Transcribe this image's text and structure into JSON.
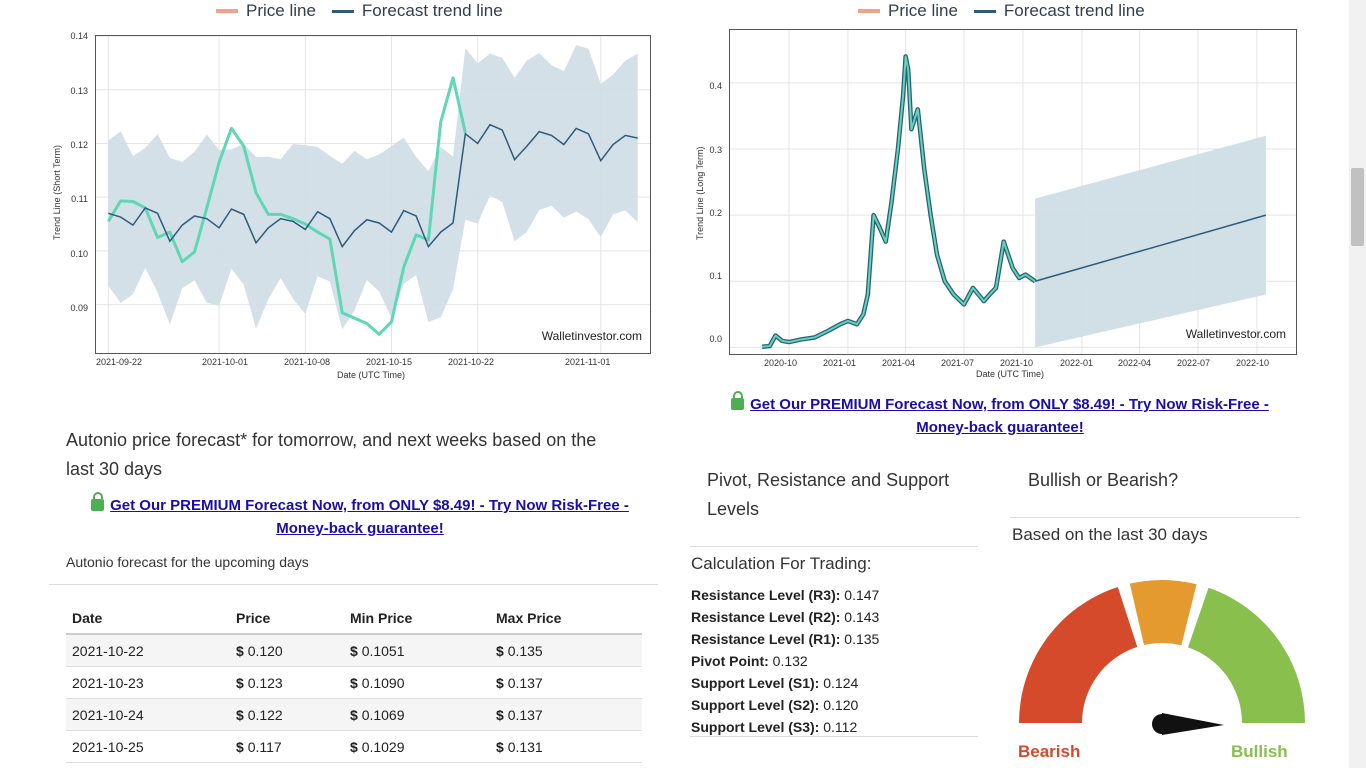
{
  "charts": {
    "short": {
      "legend": {
        "price": "Price line",
        "trend": "Forecast trend line"
      },
      "colors": {
        "price": "#5fd6b4",
        "trend": "#2d5b7c",
        "band": "#cfdde6"
      },
      "ylabel": "Trend Line (Short Term)",
      "xlabel": "Date (UTC Time)",
      "watermark": "Walletinvestor.com",
      "yticks": [
        "0.14",
        "0.13",
        "0.12",
        "0.11",
        "0.10",
        "0.09"
      ],
      "xticks": [
        "2021-09-22",
        "2021-10-01",
        "2021-10-08",
        "2021-10-15",
        "2021-10-22",
        "2021-11-01"
      ]
    },
    "long": {
      "legend": {
        "price": "Price line",
        "trend": "Forecast trend line"
      },
      "ylabel": "Trend Line (Long Term)",
      "xlabel": "Date (UTC Time)",
      "watermark": "Walletinvestor.com",
      "yticks": [
        "0.4",
        "0.3",
        "0.2",
        "0.1",
        "0.0"
      ],
      "xticks": [
        "2020-10",
        "2021-01",
        "2021-04",
        "2021-07",
        "2021-10",
        "2022-01",
        "2022-04",
        "2022-07",
        "2022-10"
      ]
    }
  },
  "chart_data": [
    {
      "type": "line",
      "ylabel": "Trend Line (Short Term)",
      "xlabel": "Date (UTC Time)",
      "ylim": [
        0.081,
        0.14
      ],
      "x_range": [
        "2021-09-21",
        "2021-11-05"
      ],
      "series": [
        {
          "name": "Price line",
          "x": [
            "2021-09-22",
            "2021-09-23",
            "2021-09-24",
            "2021-09-25",
            "2021-09-26",
            "2021-09-27",
            "2021-09-28",
            "2021-09-29",
            "2021-09-30",
            "2021-10-01",
            "2021-10-02",
            "2021-10-03",
            "2021-10-04",
            "2021-10-05",
            "2021-10-06",
            "2021-10-07",
            "2021-10-08",
            "2021-10-09",
            "2021-10-10",
            "2021-10-11",
            "2021-10-12",
            "2021-10-13",
            "2021-10-14",
            "2021-10-15",
            "2021-10-16",
            "2021-10-17",
            "2021-10-18",
            "2021-10-19",
            "2021-10-20",
            "2021-10-21"
          ],
          "values": [
            0.1055,
            0.1093,
            0.1092,
            0.108,
            0.1025,
            0.1035,
            0.098,
            0.0998,
            0.108,
            0.1165,
            0.1228,
            0.1195,
            0.1108,
            0.1068,
            0.1068,
            0.106,
            0.105,
            0.1035,
            0.1022,
            0.0885,
            0.0875,
            0.0865,
            0.0845,
            0.0868,
            0.097,
            0.103,
            0.102,
            0.124,
            0.1322,
            0.122
          ]
        },
        {
          "name": "Forecast trend line",
          "x": [
            "2021-09-22",
            "2021-09-23",
            "2021-09-24",
            "2021-09-25",
            "2021-09-26",
            "2021-09-27",
            "2021-09-28",
            "2021-09-29",
            "2021-09-30",
            "2021-10-01",
            "2021-10-02",
            "2021-10-03",
            "2021-10-04",
            "2021-10-05",
            "2021-10-06",
            "2021-10-07",
            "2021-10-08",
            "2021-10-09",
            "2021-10-10",
            "2021-10-11",
            "2021-10-12",
            "2021-10-13",
            "2021-10-14",
            "2021-10-15",
            "2021-10-16",
            "2021-10-17",
            "2021-10-18",
            "2021-10-19",
            "2021-10-20",
            "2021-10-21",
            "2021-10-22",
            "2021-10-23",
            "2021-10-24",
            "2021-10-25",
            "2021-10-26",
            "2021-10-27",
            "2021-10-28",
            "2021-10-29",
            "2021-10-30",
            "2021-10-31",
            "2021-11-01",
            "2021-11-02",
            "2021-11-03",
            "2021-11-04"
          ],
          "values": [
            0.107,
            0.1063,
            0.1048,
            0.108,
            0.107,
            0.1018,
            0.1048,
            0.1065,
            0.106,
            0.1043,
            0.1078,
            0.1068,
            0.1015,
            0.1043,
            0.106,
            0.1055,
            0.104,
            0.1073,
            0.106,
            0.1008,
            0.1038,
            0.1058,
            0.1052,
            0.1035,
            0.1075,
            0.1065,
            0.1008,
            0.1035,
            0.1052,
            0.1218,
            0.12,
            0.1235,
            0.1225,
            0.117,
            0.1195,
            0.1222,
            0.1215,
            0.1198,
            0.1228,
            0.1218,
            0.1168,
            0.1198,
            0.1215,
            0.121
          ]
        }
      ]
    },
    {
      "type": "line",
      "ylabel": "Trend Line (Long Term)",
      "xlabel": "Date (UTC Time)",
      "ylim": [
        -0.01,
        0.48
      ],
      "x_range": [
        "2020-07-01",
        "2022-12-01"
      ],
      "series": [
        {
          "name": "Price line",
          "x": [
            "2020-08-20",
            "2020-09-01",
            "2020-09-10",
            "2020-09-20",
            "2020-10-01",
            "2020-10-20",
            "2020-11-10",
            "2020-12-01",
            "2020-12-20",
            "2021-01-01",
            "2021-01-15",
            "2021-01-25",
            "2021-02-01",
            "2021-02-10",
            "2021-02-20",
            "2021-03-01",
            "2021-03-10",
            "2021-03-20",
            "2021-03-28",
            "2021-04-01",
            "2021-04-05",
            "2021-04-10",
            "2021-04-20",
            "2021-04-30",
            "2021-05-10",
            "2021-05-20",
            "2021-06-01",
            "2021-06-15",
            "2021-07-01",
            "2021-07-15",
            "2021-08-01",
            "2021-08-10",
            "2021-08-20",
            "2021-09-01",
            "2021-09-15",
            "2021-09-25",
            "2021-10-05",
            "2021-10-20"
          ],
          "values": [
            0.001,
            0.002,
            0.018,
            0.01,
            0.008,
            0.012,
            0.015,
            0.025,
            0.035,
            0.04,
            0.035,
            0.05,
            0.08,
            0.2,
            0.18,
            0.16,
            0.22,
            0.3,
            0.38,
            0.44,
            0.42,
            0.33,
            0.36,
            0.27,
            0.2,
            0.14,
            0.1,
            0.08,
            0.065,
            0.09,
            0.07,
            0.08,
            0.09,
            0.16,
            0.12,
            0.105,
            0.11,
            0.1
          ]
        },
        {
          "name": "Forecast trend line",
          "x": [
            "2021-10-20",
            "2022-10-15"
          ],
          "values": [
            0.1,
            0.2
          ]
        }
      ]
    }
  ],
  "premium_link": {
    "line1": "Get Our PREMIUM Forecast Now, from ONLY $8.49! - Try Now Risk-Free -",
    "line2": "Money-back guarantee!"
  },
  "forecast_section": {
    "heading_line1": "Autonio price forecast* for tomorrow, and next weeks based on the",
    "heading_line2": "last 30 days",
    "subheading": "Autonio forecast for the upcoming days",
    "columns": [
      "Date",
      "Price",
      "Min Price",
      "Max Price"
    ],
    "currency": "$",
    "rows": [
      {
        "date": "2021-10-22",
        "price": "0.120",
        "min": "0.1051",
        "max": "0.135"
      },
      {
        "date": "2021-10-23",
        "price": "0.123",
        "min": "0.1090",
        "max": "0.137"
      },
      {
        "date": "2021-10-24",
        "price": "0.122",
        "min": "0.1069",
        "max": "0.137"
      },
      {
        "date": "2021-10-25",
        "price": "0.117",
        "min": "0.1029",
        "max": "0.131"
      }
    ]
  },
  "pivot": {
    "heading_line1": "Pivot, Resistance and Support",
    "heading_line2": "Levels",
    "calc_title": "Calculation For Trading:",
    "levels": [
      {
        "label": "Resistance Level (R3):",
        "value": "0.147"
      },
      {
        "label": "Resistance Level (R2):",
        "value": "0.143"
      },
      {
        "label": "Resistance Level (R1):",
        "value": "0.135"
      },
      {
        "label": "Pivot Point:",
        "value": "0.132"
      },
      {
        "label": "Support Level (S1):",
        "value": "0.124"
      },
      {
        "label": "Support Level (S2):",
        "value": "0.120"
      },
      {
        "label": "Support Level (S3):",
        "value": "0.112"
      }
    ]
  },
  "sentiment": {
    "heading": "Bullish or Bearish?",
    "subheading": "Based on the last 30 days",
    "bearish_label": "Bearish",
    "bullish_label": "Bullish",
    "colors": {
      "bearish": "#d44a2a",
      "neutral": "#e49a2e",
      "bullish": "#88bf4d"
    },
    "needle_direction": "slightly-bullish"
  }
}
